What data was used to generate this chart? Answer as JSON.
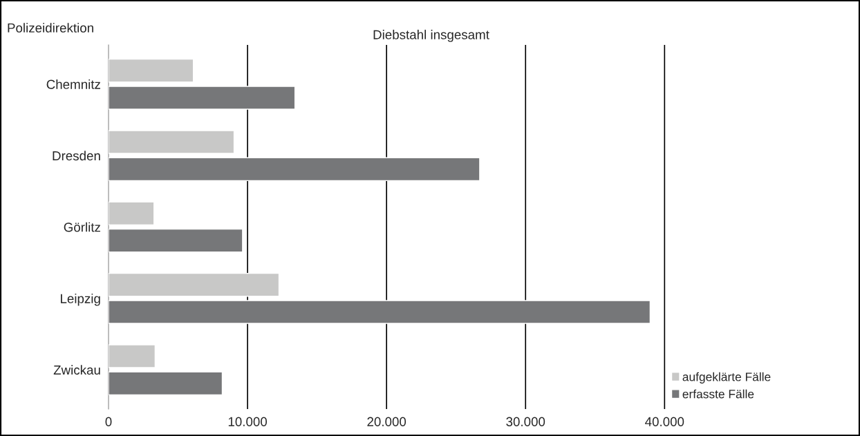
{
  "chart_data": {
    "type": "bar",
    "orientation": "horizontal",
    "title": "Diebstahl insgesamt",
    "ylabel": "Polizeidirektion",
    "categories": [
      "Chemnitz",
      "Dresden",
      "Görlitz",
      "Leipzig",
      "Zwickau"
    ],
    "series": [
      {
        "name": "aufgeklärte Fälle",
        "color": "#c8c8c7",
        "values": [
          6100,
          9030,
          3270,
          12260,
          3350
        ]
      },
      {
        "name": "erfasste Fälle",
        "color": "#767779",
        "values": [
          13410,
          26700,
          9640,
          38960,
          8180
        ]
      }
    ],
    "xlim": [
      0,
      40000
    ],
    "xticks": [
      0,
      {
        "value": 10000,
        "label": "10.000"
      },
      {
        "value": 20000,
        "label": "20.000"
      },
      {
        "value": 30000,
        "label": "30.000"
      },
      {
        "value": 40000,
        "label": "40.000"
      }
    ],
    "grid": "x",
    "legend": "bottom right"
  }
}
